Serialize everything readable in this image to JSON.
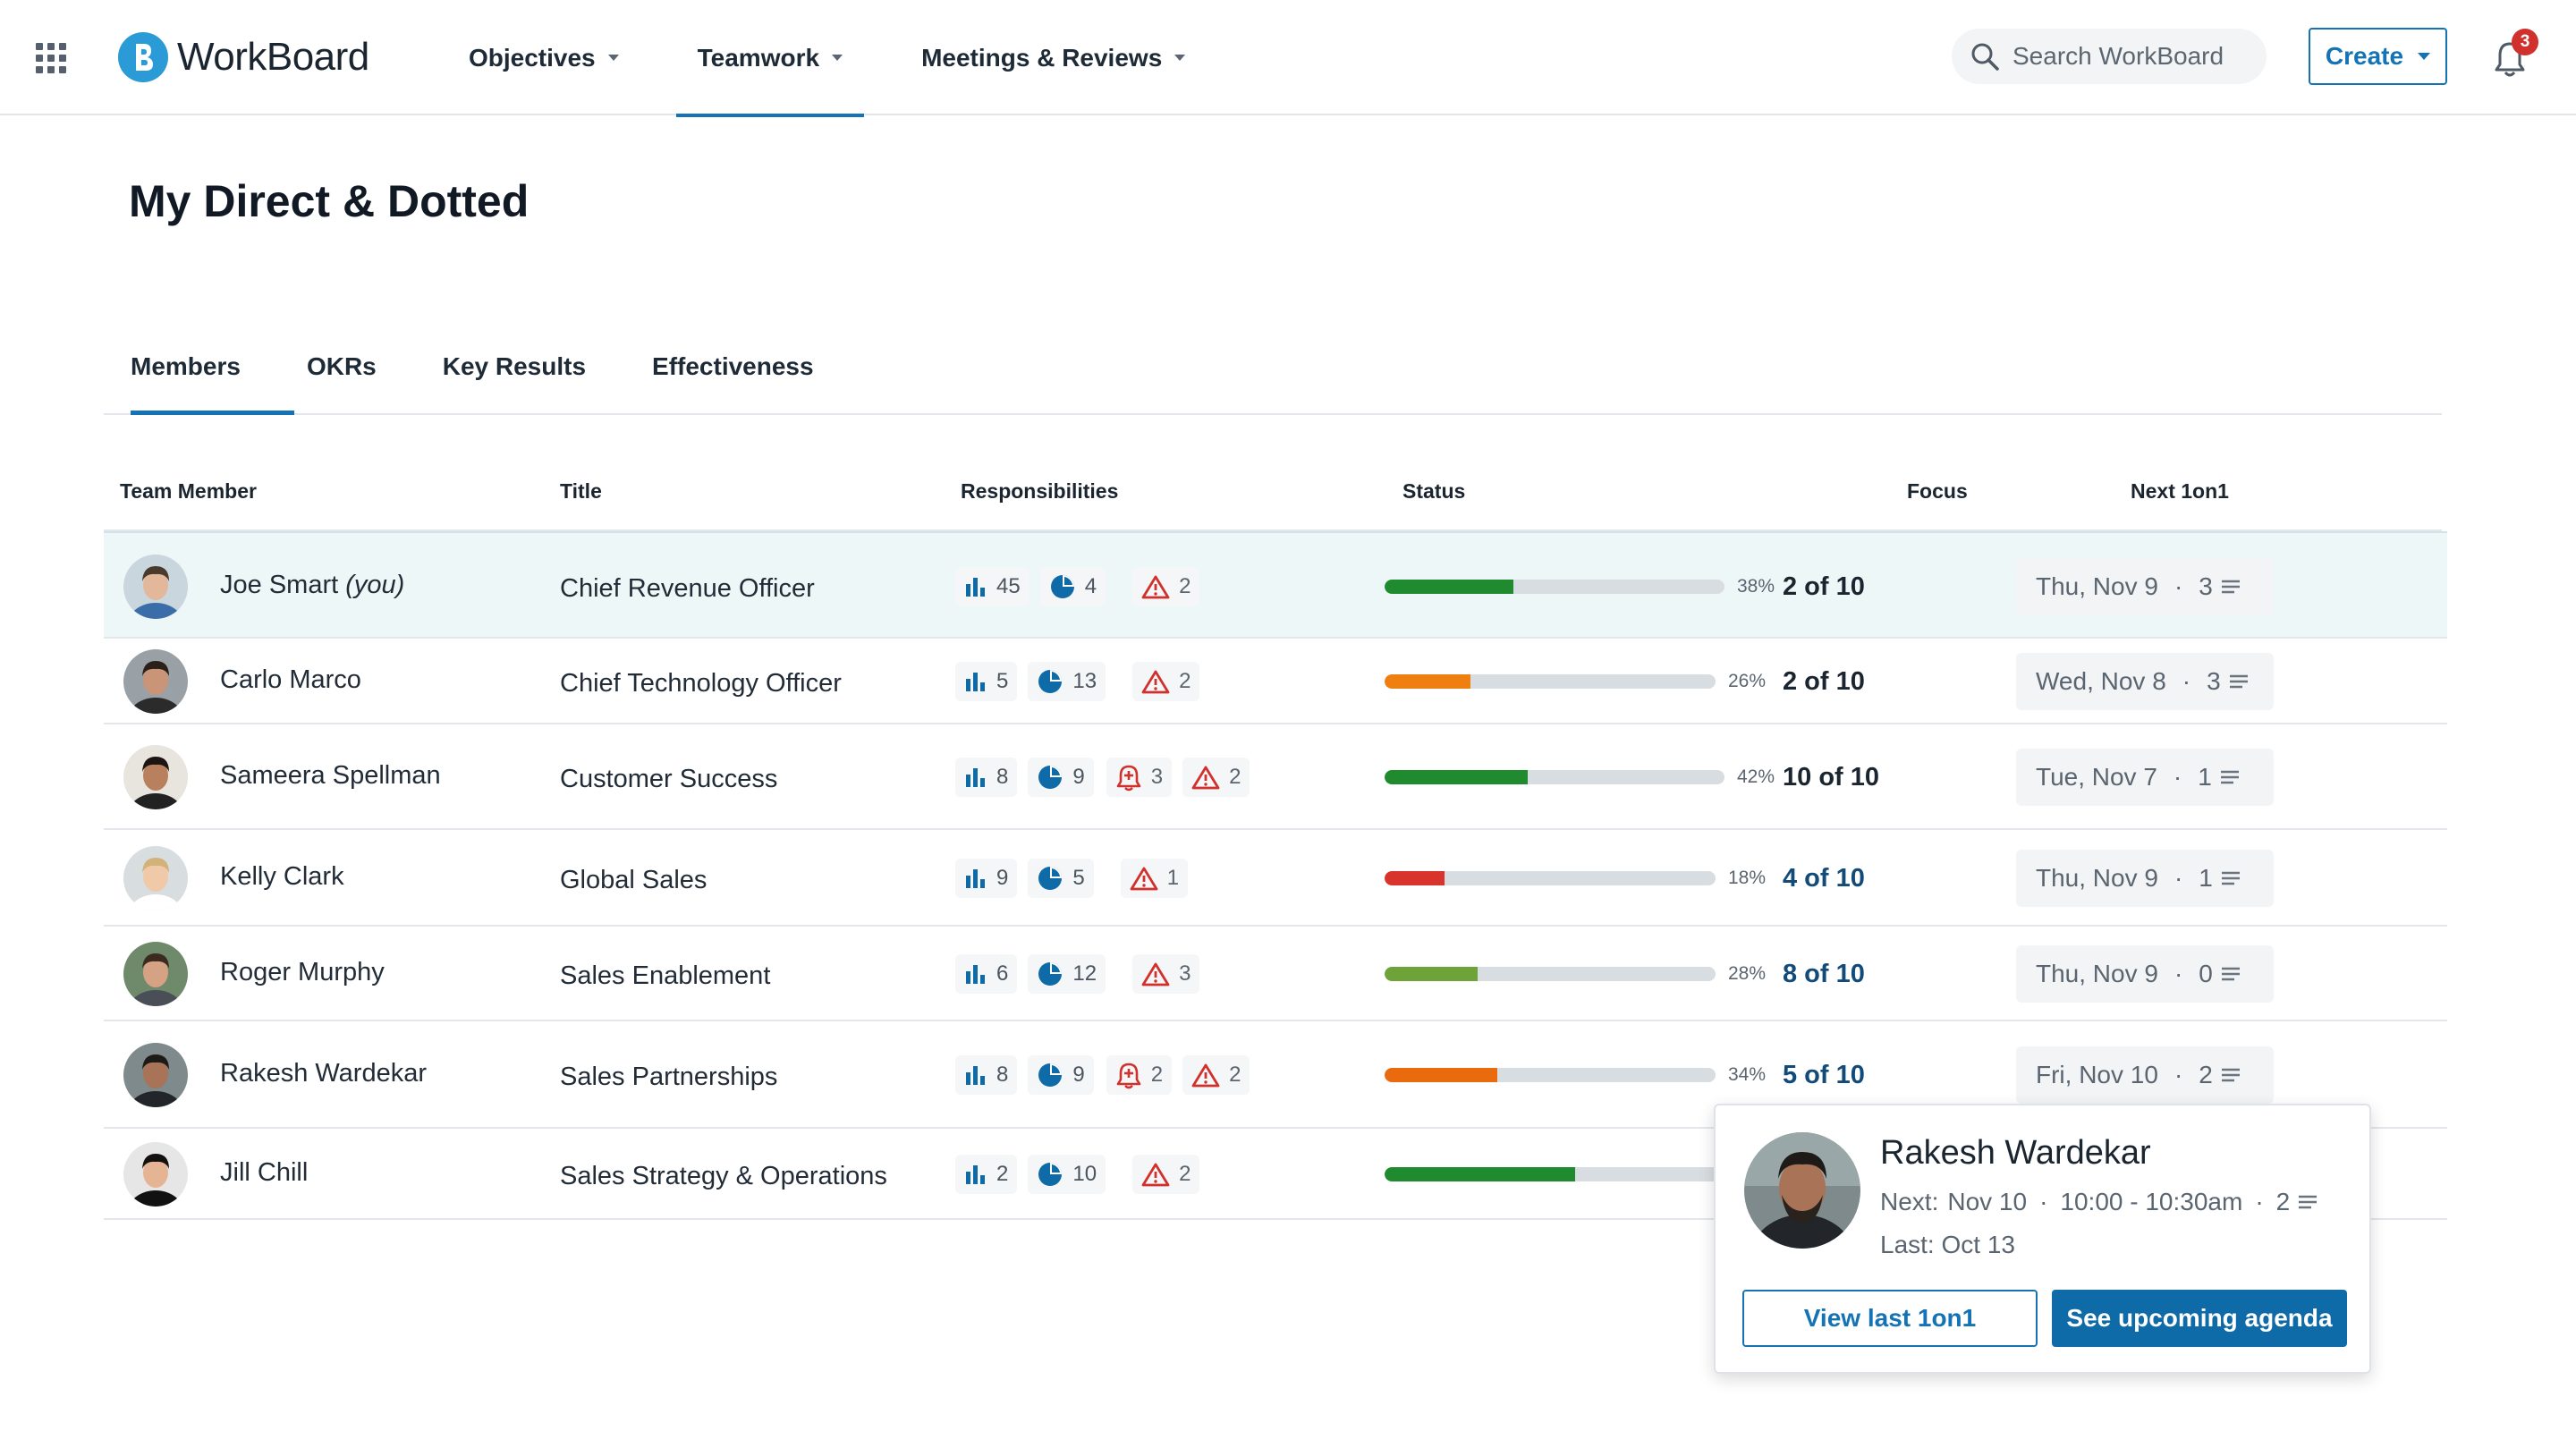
{
  "app": {
    "name": "WorkBoard"
  },
  "nav": [
    {
      "label": "Objectives"
    },
    {
      "label": "Teamwork"
    },
    {
      "label": "Meetings & Reviews"
    }
  ],
  "search": {
    "placeholder": "Search WorkBoard"
  },
  "create": {
    "label": "Create"
  },
  "notifications": {
    "count": "3"
  },
  "page": {
    "title": "My Direct & Dotted"
  },
  "tabs": [
    {
      "label": "Members"
    },
    {
      "label": "OKRs"
    },
    {
      "label": "Key Results"
    },
    {
      "label": "Effectiveness"
    }
  ],
  "columns": {
    "member": "Team Member",
    "title": "Title",
    "responsibilities": "Responsibilities",
    "status": "Status",
    "focus": "Focus",
    "next": "Next 1on1"
  },
  "rows": [
    {
      "name": "Joe Smart",
      "you": "(you)",
      "title": "Chief Revenue Officer",
      "metrics": "45",
      "objectives": "4",
      "alerts": "",
      "risks": "2",
      "status_pct": "38%",
      "status_value": 0.38,
      "status_color": "#1f8a2e",
      "focus": "2 of 10",
      "next_date": "Thu, Nov 9",
      "next_count": "3"
    },
    {
      "name": "Carlo Marco",
      "title": "Chief Technology Officer",
      "metrics": "5",
      "objectives": "13",
      "alerts": "",
      "risks": "2",
      "status_pct": "26%",
      "status_value": 0.26,
      "status_color": "#f07f12",
      "focus": "2 of 10",
      "next_date": "Wed, Nov 8",
      "next_count": "3"
    },
    {
      "name": "Sameera Spellman",
      "title": "Customer Success",
      "metrics": "8",
      "objectives": "9",
      "alerts": "3",
      "risks": "2",
      "status_pct": "42%",
      "status_value": 0.42,
      "status_color": "#1f8a2e",
      "focus": "10 of 10",
      "next_date": "Tue, Nov 7",
      "next_count": "1"
    },
    {
      "name": "Kelly Clark",
      "title": "Global Sales",
      "metrics": "9",
      "objectives": "5",
      "alerts": "",
      "risks": "1",
      "status_pct": "18%",
      "status_value": 0.18,
      "status_color": "#d9342b",
      "focus": "4 of 10",
      "next_date": "Thu, Nov 9",
      "next_count": "1"
    },
    {
      "name": "Roger Murphy",
      "title": "Sales Enablement",
      "metrics": "6",
      "objectives": "12",
      "alerts": "",
      "risks": "3",
      "status_pct": "28%",
      "status_value": 0.28,
      "status_color": "#6ea33a",
      "focus": "8 of 10",
      "next_date": "Thu, Nov 9",
      "next_count": "0"
    },
    {
      "name": "Rakesh Wardekar",
      "title": "Sales Partnerships",
      "metrics": "8",
      "objectives": "9",
      "alerts": "2",
      "risks": "2",
      "status_pct": "34%",
      "status_value": 0.34,
      "status_color": "#ea6a0e",
      "focus": "5 of 10",
      "next_date": "Fri, Nov 10",
      "next_count": "2"
    },
    {
      "name": "Jill Chill",
      "title": "Sales Strategy & Operations",
      "metrics": "2",
      "objectives": "10",
      "alerts": "",
      "risks": "2",
      "status_pct": "",
      "status_value": 0.56,
      "status_color": "#1f8a2e",
      "focus": "",
      "next_date": "",
      "next_count": ""
    }
  ],
  "popover": {
    "name": "Rakesh Wardekar",
    "next_label": "Next:",
    "next_date": "Nov 10",
    "next_time": "10:00 - 10:30am",
    "next_count": "2",
    "last": "Last: Oct 13",
    "view_last": "View last 1on1",
    "see_upcoming": "See upcoming agenda"
  }
}
